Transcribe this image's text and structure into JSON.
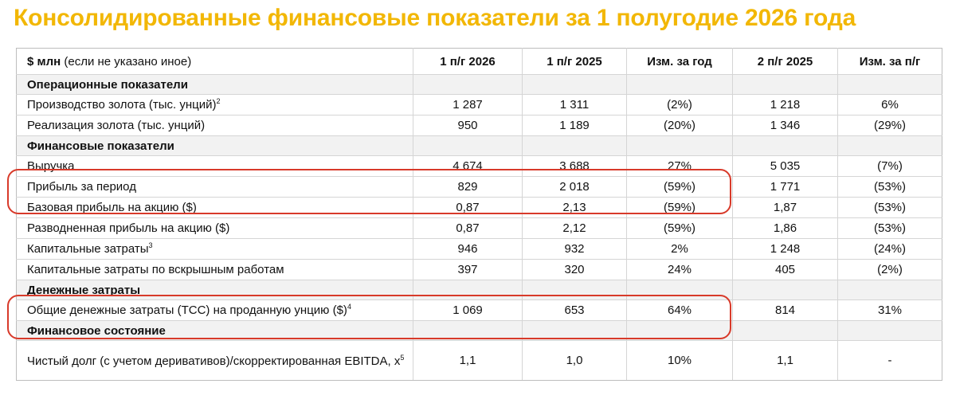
{
  "title": "Консолидированные финансовые показатели за 1 полугодие 2026 года",
  "header": {
    "unit_main": "$ млн",
    "unit_note": "(если не указано иное)",
    "cols": [
      "1 п/г 2026",
      "1 п/г 2025",
      "Изм. за год",
      "2 п/г 2025",
      "Изм. за п/г"
    ]
  },
  "sections": {
    "operational": "Операционные показатели",
    "financial": "Финансовые показатели",
    "cash_costs": "Денежные затраты",
    "position": "Финансовое состояние"
  },
  "rows": {
    "gold_production": {
      "label": "Производство золота (тыс. унций)",
      "sup": "2",
      "values": [
        "1 287",
        "1 311",
        "(2%)",
        "1 218",
        "6%"
      ]
    },
    "gold_sales": {
      "label": "Реализация золота (тыс. унций)",
      "sup": "",
      "values": [
        "950",
        "1 189",
        "(20%)",
        "1 346",
        "(29%)"
      ]
    },
    "revenue": {
      "label": "Выручка",
      "sup": "",
      "values": [
        "4 674",
        "3 688",
        "27%",
        "5 035",
        "(7%)"
      ]
    },
    "profit": {
      "label": "Прибыль за период",
      "sup": "",
      "values": [
        "829",
        "2 018",
        "(59%)",
        "1 771",
        "(53%)"
      ]
    },
    "basic_eps": {
      "label": "Базовая прибыль на акцию ($)",
      "sup": "",
      "values": [
        "0,87",
        "2,13",
        "(59%)",
        "1,87",
        "(53%)"
      ]
    },
    "diluted_eps": {
      "label": "Разводненная прибыль на акцию ($)",
      "sup": "",
      "values": [
        "0,87",
        "2,12",
        "(59%)",
        "1,86",
        "(53%)"
      ]
    },
    "capex": {
      "label": "Капитальные затраты",
      "sup": "3",
      "values": [
        "946",
        "932",
        "2%",
        "1 248",
        "(24%)"
      ]
    },
    "stripping_capex": {
      "label": "Капитальные затраты по вскрышным работам",
      "sup": "",
      "values": [
        "397",
        "320",
        "24%",
        "405",
        "(2%)"
      ]
    },
    "tcc": {
      "label": "Общие денежные затраты (TCC) на проданную унцию ($)",
      "sup": "4",
      "values": [
        "1 069",
        "653",
        "64%",
        "814",
        "31%"
      ]
    },
    "net_debt": {
      "label": "Чистый долг (с учетом деривативов)/скорректированная EBITDA, x",
      "sup": "5",
      "values": [
        "1,1",
        "1,0",
        "10%",
        "1,1",
        "-"
      ]
    }
  }
}
